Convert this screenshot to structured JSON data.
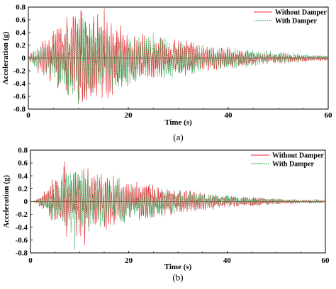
{
  "colors": {
    "without": "#e8242c",
    "with": "#1aa64a"
  },
  "chart_data": [
    {
      "type": "line",
      "caption": "(a)",
      "title": "",
      "xlabel": "Time (s)",
      "ylabel": "Acceleration (g)",
      "xlim": [
        0,
        60
      ],
      "ylim": [
        -0.8,
        0.8
      ],
      "xticks": [
        "0",
        "20",
        "40",
        "60"
      ],
      "yticks": [
        "0.8",
        "0.6",
        "0.4",
        "0.2",
        "0",
        "-0.2",
        "-0.4",
        "-0.6",
        "-0.8"
      ],
      "legend_position": "top-right",
      "series": [
        {
          "name": "Without Damper",
          "style": "solid",
          "envelope": {
            "t": [
              0,
              2,
              4,
              6,
              8,
              10,
              12,
              14,
              16,
              18,
              20,
              22,
              24,
              26,
              28,
              30,
              32,
              34,
              36,
              38,
              40,
              42,
              44,
              46,
              48,
              50,
              52,
              54,
              56,
              58,
              60
            ],
            "amp": [
              0.04,
              0.25,
              0.4,
              0.55,
              0.7,
              0.75,
              0.72,
              0.7,
              0.68,
              0.6,
              0.5,
              0.4,
              0.35,
              0.35,
              0.3,
              0.3,
              0.28,
              0.25,
              0.22,
              0.2,
              0.18,
              0.15,
              0.12,
              0.1,
              0.1,
              0.09,
              0.08,
              0.06,
              0.05,
              0.05,
              0.04
            ]
          },
          "peaks": [
            {
              "t": 10.5,
              "v": 0.75
            },
            {
              "t": 15.2,
              "v": 0.78
            },
            {
              "t": 12.5,
              "v": -0.6
            }
          ]
        },
        {
          "name": "With Damper",
          "style": "dashed",
          "envelope": {
            "t": [
              0,
              2,
              4,
              6,
              8,
              10,
              12,
              14,
              16,
              18,
              20,
              22,
              24,
              26,
              28,
              30,
              32,
              34,
              36,
              38,
              40,
              42,
              44,
              46,
              48,
              50,
              52,
              54,
              56,
              58,
              60
            ],
            "amp": [
              0.04,
              0.22,
              0.35,
              0.5,
              0.62,
              0.68,
              0.65,
              0.58,
              0.55,
              0.5,
              0.42,
              0.38,
              0.4,
              0.38,
              0.35,
              0.3,
              0.3,
              0.25,
              0.22,
              0.2,
              0.18,
              0.16,
              0.15,
              0.13,
              0.12,
              0.1,
              0.1,
              0.08,
              0.06,
              0.05,
              0.04
            ]
          },
          "peaks": [
            {
              "t": 10.0,
              "v": -0.72
            },
            {
              "t": 25.0,
              "v": 0.4
            }
          ]
        }
      ]
    },
    {
      "type": "line",
      "caption": "(b)",
      "title": "",
      "xlabel": "Time (s)",
      "ylabel": "Acceleration (g)",
      "xlim": [
        0,
        60
      ],
      "ylim": [
        -0.8,
        0.8
      ],
      "xticks": [
        "0",
        "20",
        "40",
        "60"
      ],
      "yticks": [
        "0.8",
        "0.6",
        "0.4",
        "0.2",
        "0",
        "-0.2",
        "-0.4",
        "-0.6",
        "-0.8"
      ],
      "legend_position": "top-right",
      "series": [
        {
          "name": "Without Damper",
          "style": "solid",
          "envelope": {
            "t": [
              0,
              1,
              2,
              4,
              6,
              8,
              10,
              12,
              14,
              16,
              18,
              20,
              22,
              24,
              26,
              28,
              30,
              32,
              34,
              36,
              38,
              40,
              42,
              44,
              46,
              48,
              50,
              52,
              54,
              56,
              58,
              60
            ],
            "amp": [
              0,
              0.02,
              0.1,
              0.3,
              0.55,
              0.6,
              0.58,
              0.55,
              0.5,
              0.45,
              0.4,
              0.35,
              0.3,
              0.3,
              0.28,
              0.25,
              0.22,
              0.2,
              0.17,
              0.15,
              0.12,
              0.1,
              0.09,
              0.08,
              0.08,
              0.06,
              0.05,
              0.04,
              0.03,
              0.03,
              0.03,
              0.02
            ]
          },
          "peaks": [
            {
              "t": 7.0,
              "v": 0.62
            },
            {
              "t": 11.0,
              "v": -0.68
            }
          ]
        },
        {
          "name": "With Damper",
          "style": "dashed",
          "envelope": {
            "t": [
              0,
              1,
              2,
              4,
              6,
              8,
              10,
              12,
              14,
              16,
              18,
              20,
              22,
              24,
              26,
              28,
              30,
              32,
              34,
              36,
              38,
              40,
              42,
              44,
              46,
              48,
              50,
              52,
              54,
              56,
              58,
              60
            ],
            "amp": [
              0,
              0.02,
              0.08,
              0.25,
              0.45,
              0.55,
              0.55,
              0.5,
              0.48,
              0.45,
              0.4,
              0.35,
              0.3,
              0.28,
              0.25,
              0.22,
              0.2,
              0.18,
              0.15,
              0.13,
              0.1,
              0.1,
              0.08,
              0.08,
              0.07,
              0.06,
              0.05,
              0.04,
              0.03,
              0.03,
              0.03,
              0.02
            ]
          },
          "peaks": [
            {
              "t": 9.0,
              "v": -0.75
            }
          ]
        }
      ]
    }
  ]
}
